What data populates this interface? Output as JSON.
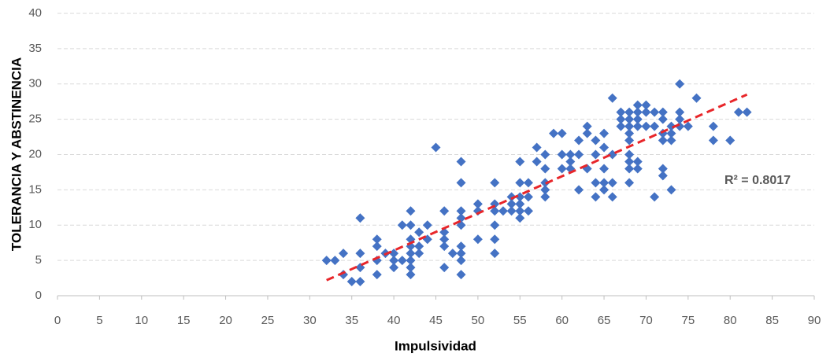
{
  "chart_data": {
    "type": "scatter",
    "xlabel": "Impulsividad",
    "ylabel": "TOLERANCIA Y ABSTINENCIA",
    "color": "#4472c4",
    "x": [
      32,
      33,
      34,
      34,
      35,
      36,
      36,
      36,
      36,
      38,
      38,
      38,
      38,
      39,
      40,
      40,
      40,
      41,
      41,
      42,
      42,
      42,
      42,
      42,
      42,
      42,
      42,
      43,
      43,
      43,
      44,
      44,
      45,
      46,
      46,
      46,
      46,
      46,
      47,
      48,
      48,
      48,
      48,
      48,
      48,
      48,
      48,
      48,
      50,
      50,
      50,
      52,
      52,
      52,
      52,
      52,
      52,
      53,
      54,
      54,
      54,
      55,
      55,
      55,
      55,
      55,
      55,
      56,
      56,
      56,
      57,
      57,
      58,
      58,
      58,
      58,
      58,
      59,
      60,
      60,
      60,
      61,
      61,
      61,
      62,
      62,
      62,
      63,
      63,
      63,
      64,
      64,
      64,
      64,
      65,
      65,
      65,
      65,
      65,
      66,
      66,
      66,
      66,
      67,
      67,
      67,
      68,
      68,
      68,
      68,
      68,
      68,
      68,
      68,
      68,
      69,
      69,
      69,
      69,
      69,
      69,
      70,
      70,
      70,
      71,
      71,
      71,
      72,
      72,
      72,
      72,
      72,
      72,
      73,
      73,
      73,
      73,
      74,
      74,
      74,
      74,
      75,
      76,
      78,
      78,
      80,
      81,
      82
    ],
    "values": [
      5,
      5,
      3,
      6,
      2,
      2,
      4,
      6,
      11,
      3,
      5,
      7,
      8,
      6,
      4,
      5,
      6,
      5,
      10,
      3,
      4,
      5,
      6,
      7,
      8,
      10,
      12,
      6,
      7,
      9,
      8,
      10,
      21,
      4,
      7,
      8,
      9,
      12,
      6,
      3,
      5,
      6,
      7,
      10,
      11,
      12,
      16,
      19,
      8,
      12,
      13,
      6,
      8,
      10,
      12,
      13,
      16,
      12,
      12,
      13,
      14,
      11,
      12,
      13,
      14,
      16,
      19,
      12,
      14,
      16,
      19,
      21,
      14,
      15,
      16,
      18,
      20,
      23,
      18,
      20,
      23,
      18,
      19,
      20,
      15,
      20,
      22,
      18,
      23,
      24,
      14,
      16,
      20,
      22,
      15,
      16,
      18,
      21,
      23,
      14,
      16,
      20,
      28,
      24,
      25,
      26,
      16,
      18,
      19,
      20,
      22,
      23,
      24,
      25,
      26,
      18,
      19,
      24,
      25,
      26,
      27,
      24,
      26,
      27,
      14,
      24,
      26,
      17,
      18,
      22,
      23,
      25,
      26,
      15,
      22,
      23,
      24,
      24,
      25,
      26,
      30,
      24,
      28,
      22,
      24,
      22,
      26,
      26
    ],
    "trendline": {
      "x": [
        32,
        82
      ],
      "values": [
        2.2,
        28.5
      ],
      "color": "#e8262a",
      "label": "R² = 0.8017"
    },
    "xlim": [
      0,
      90
    ],
    "xticks": [
      0,
      5,
      10,
      15,
      20,
      25,
      30,
      35,
      40,
      45,
      50,
      55,
      60,
      65,
      70,
      75,
      80,
      85,
      90
    ],
    "ylim": [
      0,
      40
    ],
    "yticks": [
      0,
      5,
      10,
      15,
      20,
      25,
      30,
      35,
      40
    ],
    "grid": true
  }
}
